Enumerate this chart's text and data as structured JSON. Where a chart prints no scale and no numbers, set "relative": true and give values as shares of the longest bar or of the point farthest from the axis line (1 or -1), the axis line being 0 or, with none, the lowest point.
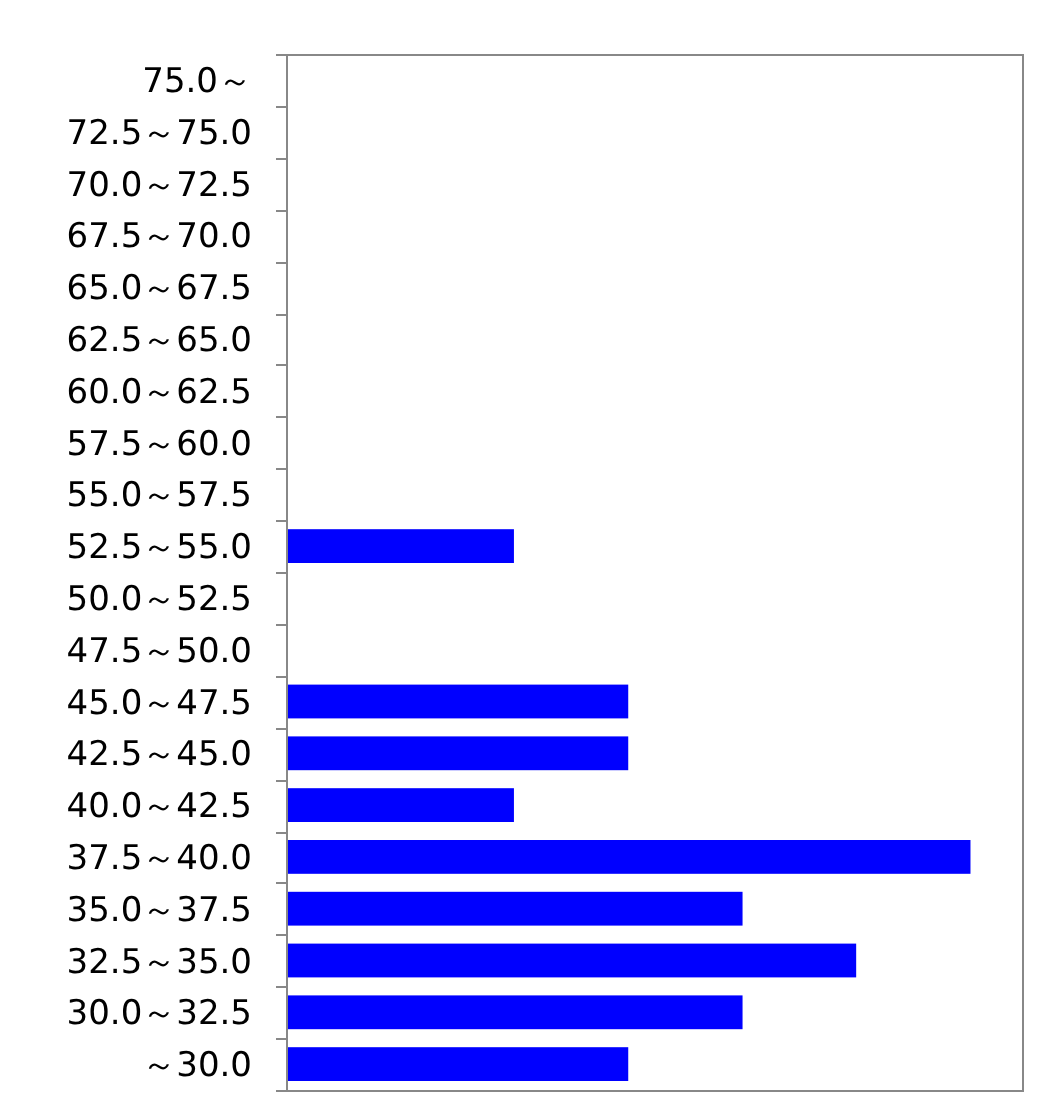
{
  "chart_data": {
    "type": "bar",
    "orientation": "horizontal",
    "relative": true,
    "color": "#0000ff",
    "categories": [
      "75.0～",
      "72.5～75.0",
      "70.0～72.5",
      "67.5～70.0",
      "65.0～67.5",
      "62.5～65.0",
      "60.0～62.5",
      "57.5～60.0",
      "55.0～57.5",
      "52.5～55.0",
      "50.0～52.5",
      "47.5～50.0",
      "45.0～47.5",
      "42.5～45.0",
      "40.0～42.5",
      "37.5～40.0",
      "35.0～37.5",
      "32.5～35.0",
      "30.0～32.5",
      "～30.0"
    ],
    "values": [
      0,
      0,
      0,
      0,
      0,
      0,
      0,
      0,
      0,
      0.333,
      0,
      0,
      0.5,
      0.5,
      0.333,
      1,
      0.667,
      0.833,
      0.667,
      0.5
    ]
  }
}
